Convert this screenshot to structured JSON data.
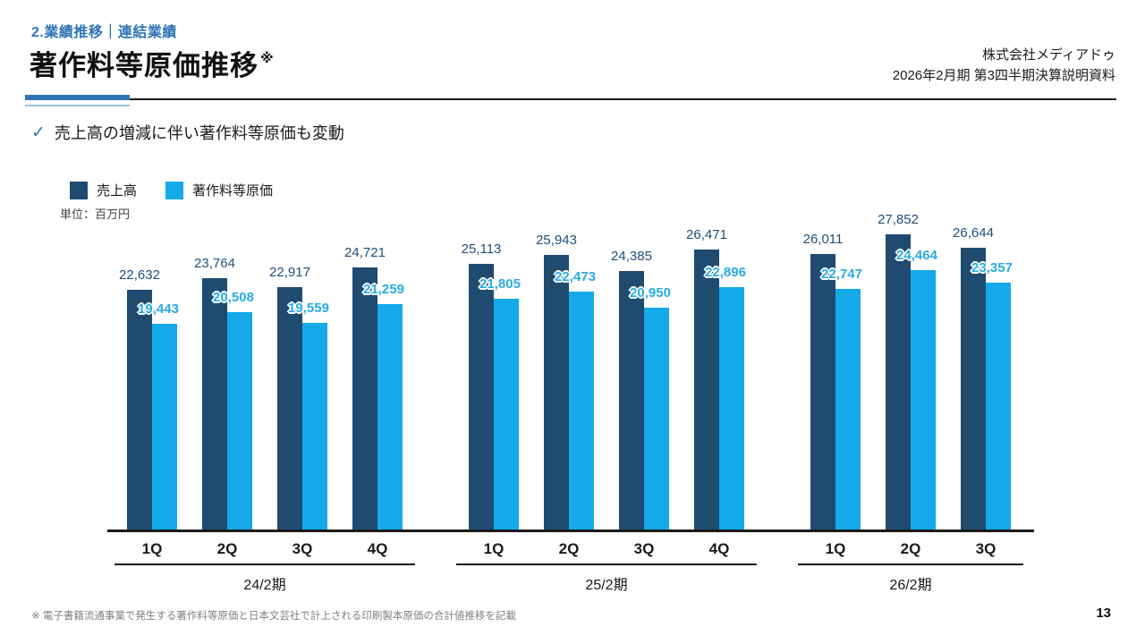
{
  "slide": {
    "section_label": "2.業績推移｜連結業績",
    "title": "著作料等原価推移",
    "title_note_mark": "※",
    "company_name": "株式会社メディアドゥ",
    "document_title": "2026年2月期 第3四半期決算説明資料",
    "keypoint": {
      "check_icon": "✓",
      "text": "売上高の増減に伴い著作料等原価も変動"
    },
    "footnote": "※ 電子書籍流通事業で発生する著作料等原価と日本文芸社で計上される印刷製本原価の合計値推移を記載",
    "page_number": "13"
  },
  "colors": {
    "accent_blue": "#2E74B5",
    "sales_bar": "#1F4B70",
    "cost_bar": "#14A9E9",
    "sales_label": "#1F4E79",
    "cost_label": "#29ABE2"
  },
  "chart_data": {
    "type": "bar",
    "title": "著作料等原価推移",
    "unit_label": "単位：百万円",
    "ylabel": "百万円",
    "ylim": [
      0,
      28900
    ],
    "grid": false,
    "legend_position": "top-left",
    "categories": [
      "1Q",
      "2Q",
      "3Q",
      "4Q",
      "1Q",
      "2Q",
      "3Q",
      "4Q",
      "1Q",
      "2Q",
      "3Q"
    ],
    "period_groups": [
      {
        "label": "24/2期",
        "count": 4
      },
      {
        "label": "25/2期",
        "count": 4
      },
      {
        "label": "26/2期",
        "count": 3
      }
    ],
    "series": [
      {
        "name": "売上高",
        "color": "#1F4B70",
        "values": [
          22632,
          23764,
          22917,
          24721,
          25113,
          25943,
          24385,
          26471,
          26011,
          27852,
          26644
        ]
      },
      {
        "name": "著作料等原価",
        "color": "#14A9E9",
        "values": [
          19443,
          20508,
          19559,
          21259,
          21805,
          22473,
          20950,
          22896,
          22747,
          24464,
          23357
        ]
      }
    ]
  }
}
